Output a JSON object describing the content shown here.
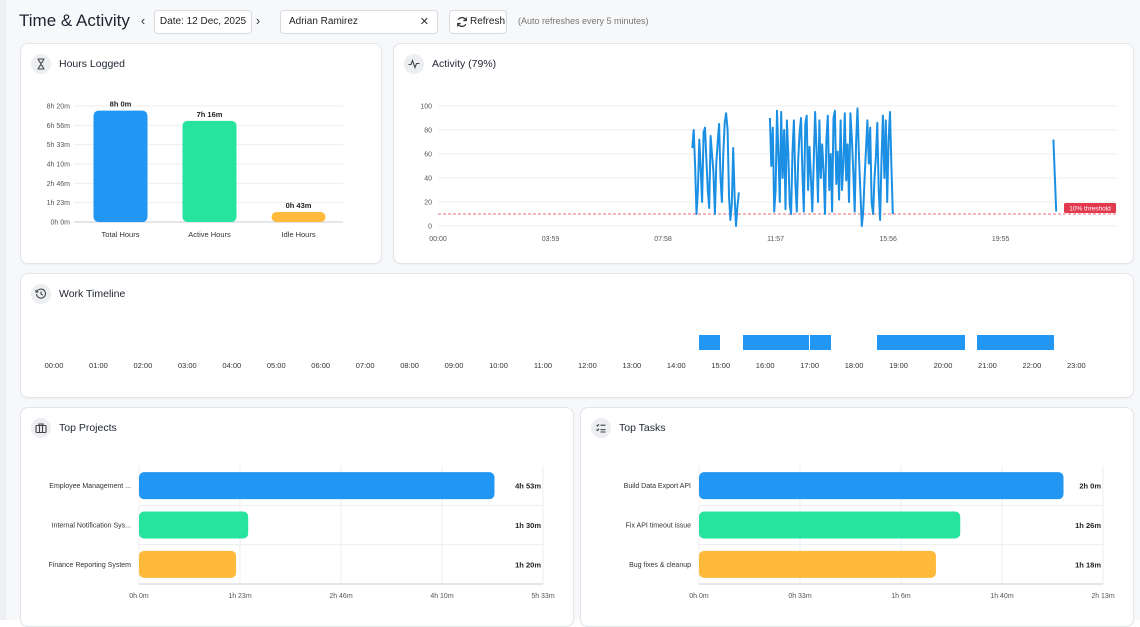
{
  "header": {
    "title": "Time & Activity",
    "date_label": "Date: 12 Dec, 2025",
    "prev_symbol": "‹",
    "next_symbol": "›",
    "user_value": "Adrian Ramirez",
    "clear_symbol": "✕",
    "refresh_label": "Refresh",
    "auto_refresh_note": "(Auto refreshes every 5 minutes)"
  },
  "hours_logged": {
    "title": "Hours Logged",
    "icon": "hourglass-icon",
    "chart_data": {
      "type": "bar",
      "categories": [
        "Total Hours",
        "Active Hours",
        "Idle Hours"
      ],
      "values_minutes": [
        480,
        436,
        43
      ],
      "value_labels": [
        "8h 0m",
        "7h 16m",
        "0h 43m"
      ],
      "colors": [
        "#2196f3",
        "#26e39e",
        "#ffba3b"
      ],
      "yticks": [
        "0h 0m",
        "1h 23m",
        "2h 46m",
        "4h 10m",
        "5h 33m",
        "6h 56m",
        "8h 20m"
      ],
      "ylim_minutes": [
        0,
        500
      ]
    }
  },
  "activity": {
    "title": "Activity (79%)",
    "icon": "activity-pulse-icon",
    "chart_data": {
      "type": "line",
      "yticks": [
        0,
        20,
        40,
        60,
        80,
        100
      ],
      "ylim": [
        0,
        100
      ],
      "xticks": [
        "00:00",
        "03:59",
        "07:58",
        "11:57",
        "15:56",
        "19:55"
      ],
      "x_range_minutes": [
        0,
        1440
      ],
      "threshold": 10,
      "threshold_label": "10% threshold",
      "color": "#1a8fe3",
      "threshold_color": "#e3394f",
      "segments": [
        [
          [
            540,
            65
          ],
          [
            543,
            80
          ],
          [
            546,
            50
          ],
          [
            549,
            10
          ],
          [
            552,
            30
          ],
          [
            555,
            72
          ],
          [
            558,
            48
          ],
          [
            561,
            20
          ],
          [
            564,
            78
          ],
          [
            567,
            82
          ],
          [
            570,
            55
          ],
          [
            573,
            30
          ],
          [
            576,
            15
          ],
          [
            579,
            75
          ],
          [
            582,
            60
          ],
          [
            585,
            45
          ],
          [
            588,
            10
          ],
          [
            591,
            52
          ],
          [
            594,
            70
          ],
          [
            597,
            85
          ],
          [
            600,
            40
          ],
          [
            603,
            20
          ],
          [
            606,
            60
          ],
          [
            609,
            86
          ],
          [
            612,
            94
          ],
          [
            615,
            80
          ],
          [
            618,
            25
          ],
          [
            621,
            5
          ],
          [
            624,
            18
          ],
          [
            627,
            65
          ],
          [
            630,
            25
          ],
          [
            633,
            0
          ],
          [
            636,
            16
          ],
          [
            639,
            28
          ]
        ],
        [
          [
            705,
            90
          ],
          [
            708,
            50
          ],
          [
            711,
            82
          ],
          [
            714,
            12
          ],
          [
            717,
            30
          ],
          [
            720,
            96
          ],
          [
            723,
            60
          ],
          [
            726,
            20
          ],
          [
            729,
            95
          ],
          [
            732,
            40
          ],
          [
            735,
            80
          ],
          [
            738,
            14
          ],
          [
            741,
            88
          ],
          [
            744,
            60
          ],
          [
            747,
            18
          ],
          [
            750,
            10
          ],
          [
            753,
            62
          ],
          [
            756,
            88
          ],
          [
            759,
            35
          ],
          [
            762,
            12
          ],
          [
            765,
            55
          ],
          [
            768,
            78
          ],
          [
            771,
            90
          ],
          [
            774,
            45
          ],
          [
            777,
            12
          ],
          [
            780,
            85
          ],
          [
            783,
            92
          ],
          [
            786,
            30
          ],
          [
            789,
            66
          ],
          [
            792,
            40
          ],
          [
            795,
            12
          ],
          [
            798,
            52
          ],
          [
            801,
            95
          ],
          [
            804,
            62
          ],
          [
            807,
            20
          ],
          [
            810,
            88
          ],
          [
            813,
            40
          ],
          [
            816,
            68
          ],
          [
            819,
            45
          ],
          [
            822,
            10
          ],
          [
            825,
            72
          ],
          [
            828,
            92
          ],
          [
            831,
            30
          ],
          [
            834,
            60
          ],
          [
            837,
            12
          ],
          [
            840,
            90
          ],
          [
            843,
            96
          ],
          [
            846,
            35
          ],
          [
            849,
            62
          ],
          [
            852,
            22
          ],
          [
            855,
            88
          ],
          [
            858,
            30
          ],
          [
            861,
            52
          ],
          [
            864,
            94
          ],
          [
            867,
            38
          ],
          [
            870,
            68
          ],
          [
            873,
            20
          ],
          [
            876,
            94
          ],
          [
            879,
            72
          ],
          [
            882,
            45
          ],
          [
            885,
            12
          ],
          [
            888,
            70
          ],
          [
            891,
            98
          ],
          [
            894,
            60
          ],
          [
            897,
            30
          ],
          [
            900,
            0
          ],
          [
            903,
            12
          ],
          [
            906,
            40
          ],
          [
            909,
            64
          ],
          [
            912,
            88
          ],
          [
            915,
            52
          ],
          [
            918,
            82
          ],
          [
            921,
            20
          ],
          [
            924,
            10
          ],
          [
            927,
            40
          ],
          [
            930,
            58
          ],
          [
            933,
            86
          ],
          [
            936,
            30
          ],
          [
            939,
            5
          ],
          [
            942,
            55
          ],
          [
            945,
            92
          ],
          [
            948,
            40
          ],
          [
            951,
            88
          ],
          [
            954,
            20
          ],
          [
            957,
            72
          ],
          [
            960,
            95
          ],
          [
            963,
            50
          ],
          [
            966,
            10
          ]
        ],
        [
          [
            1307,
            72
          ],
          [
            1310,
            42
          ],
          [
            1313,
            12
          ]
        ]
      ]
    }
  },
  "work_timeline": {
    "title": "Work Timeline",
    "icon": "history-clock-icon",
    "hour_labels": [
      "00:00",
      "01:00",
      "02:00",
      "03:00",
      "04:00",
      "05:00",
      "06:00",
      "07:00",
      "08:00",
      "09:00",
      "10:00",
      "11:00",
      "12:00",
      "13:00",
      "14:00",
      "15:00",
      "16:00",
      "17:00",
      "18:00",
      "19:00",
      "20:00",
      "21:00",
      "22:00",
      "23:00"
    ],
    "color": "#2196f3",
    "sessions": [
      {
        "start": "14:30",
        "end": "15:00"
      },
      {
        "start": "15:30",
        "end": "17:00"
      },
      {
        "start": "17:00",
        "end": "17:30"
      },
      {
        "start": "18:30",
        "end": "20:30"
      },
      {
        "start": "20:45",
        "end": "22:30"
      }
    ]
  },
  "top_projects": {
    "title": "Top Projects",
    "icon": "briefcase-icon",
    "chart_data": {
      "type": "bar",
      "orientation": "horizontal",
      "categories": [
        "Employee Management ...",
        "Internal Notification Sys...",
        "Finance Reporting System"
      ],
      "values_minutes": [
        293,
        90,
        80
      ],
      "value_labels": [
        "4h 53m",
        "1h 30m",
        "1h 20m"
      ],
      "colors": [
        "#2196f3",
        "#26e39e",
        "#ffba3b"
      ],
      "xticks": [
        "0h 0m",
        "1h 23m",
        "2h 46m",
        "4h 10m",
        "5h 33m"
      ],
      "xlim_minutes": [
        0,
        333
      ]
    }
  },
  "top_tasks": {
    "title": "Top Tasks",
    "icon": "task-list-icon",
    "chart_data": {
      "type": "bar",
      "orientation": "horizontal",
      "categories": [
        "Build Data Export API",
        "Fix API timeout issue",
        "Bug fixes & cleanup"
      ],
      "values_minutes": [
        120,
        86,
        78
      ],
      "value_labels": [
        "2h 0m",
        "1h 26m",
        "1h 18m"
      ],
      "colors": [
        "#2196f3",
        "#26e39e",
        "#ffba3b"
      ],
      "xticks": [
        "0h 0m",
        "0h 33m",
        "1h 6m",
        "1h 40m",
        "2h 13m"
      ],
      "xlim_minutes": [
        0,
        133
      ]
    }
  }
}
